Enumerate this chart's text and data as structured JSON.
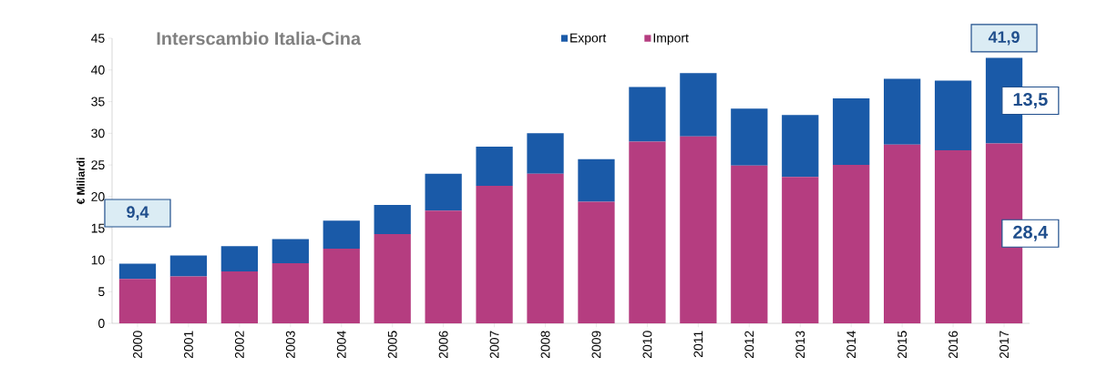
{
  "chart_data": {
    "type": "bar",
    "stacked": true,
    "title": "Interscambio Italia-Cina",
    "ylabel": "€ Miliardi",
    "categories": [
      "2000",
      "2001",
      "2002",
      "2003",
      "2004",
      "2005",
      "2006",
      "2007",
      "2008",
      "2009",
      "2010",
      "2011",
      "2012",
      "2013",
      "2014",
      "2015",
      "2016",
      "2017"
    ],
    "series": [
      {
        "name": "Import",
        "color": "#b53d80",
        "values": [
          7.0,
          7.4,
          8.2,
          9.5,
          11.8,
          14.1,
          17.8,
          21.7,
          23.6,
          19.2,
          28.7,
          29.5,
          24.9,
          23.1,
          25.0,
          28.2,
          27.3,
          28.4
        ],
        "value_labels": [
          null,
          null,
          null,
          null,
          null,
          null,
          null,
          null,
          null,
          null,
          null,
          null,
          null,
          null,
          null,
          null,
          null,
          "28,4"
        ]
      },
      {
        "name": "Export",
        "color": "#1a5aa8",
        "values": [
          2.4,
          3.3,
          4.0,
          3.8,
          4.4,
          4.6,
          5.8,
          6.2,
          6.4,
          6.7,
          8.6,
          10.0,
          9.0,
          9.8,
          10.5,
          10.4,
          11.0,
          13.5
        ],
        "value_labels": [
          null,
          null,
          null,
          null,
          null,
          null,
          null,
          null,
          null,
          null,
          null,
          null,
          null,
          null,
          null,
          null,
          null,
          "13,5"
        ]
      }
    ],
    "totals": [
      "9,4",
      null,
      null,
      null,
      null,
      null,
      null,
      null,
      null,
      null,
      null,
      null,
      null,
      null,
      null,
      null,
      null,
      "41,9"
    ],
    "ylim": [
      0,
      45
    ],
    "yticks": [
      0,
      5,
      10,
      15,
      20,
      25,
      30,
      35,
      40,
      45
    ],
    "grid": false,
    "legend": "top"
  }
}
